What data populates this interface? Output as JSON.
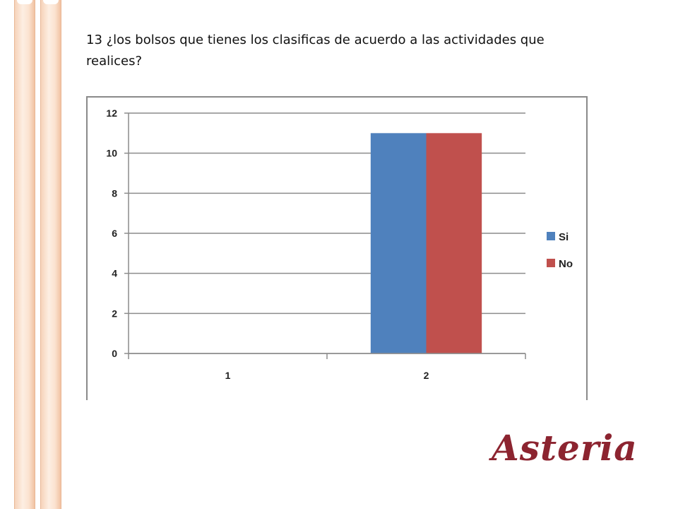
{
  "question": {
    "text": "13 ¿los bolsos que tienes los clasificas de acuerdo a las actividades que realices?"
  },
  "brand": {
    "logo_text": "Asteria",
    "logo_color": "#8c2430"
  },
  "chart_data": {
    "type": "bar",
    "categories": [
      "1",
      "2"
    ],
    "series": [
      {
        "name": "Si",
        "color": "#4f81bd",
        "values": [
          0,
          11
        ]
      },
      {
        "name": "No",
        "color": "#c0504d",
        "values": [
          0,
          11
        ]
      }
    ],
    "ylim": [
      0,
      12
    ],
    "yticks": [
      0,
      2,
      4,
      6,
      8,
      10,
      12
    ],
    "grid": true,
    "legend": "right"
  }
}
